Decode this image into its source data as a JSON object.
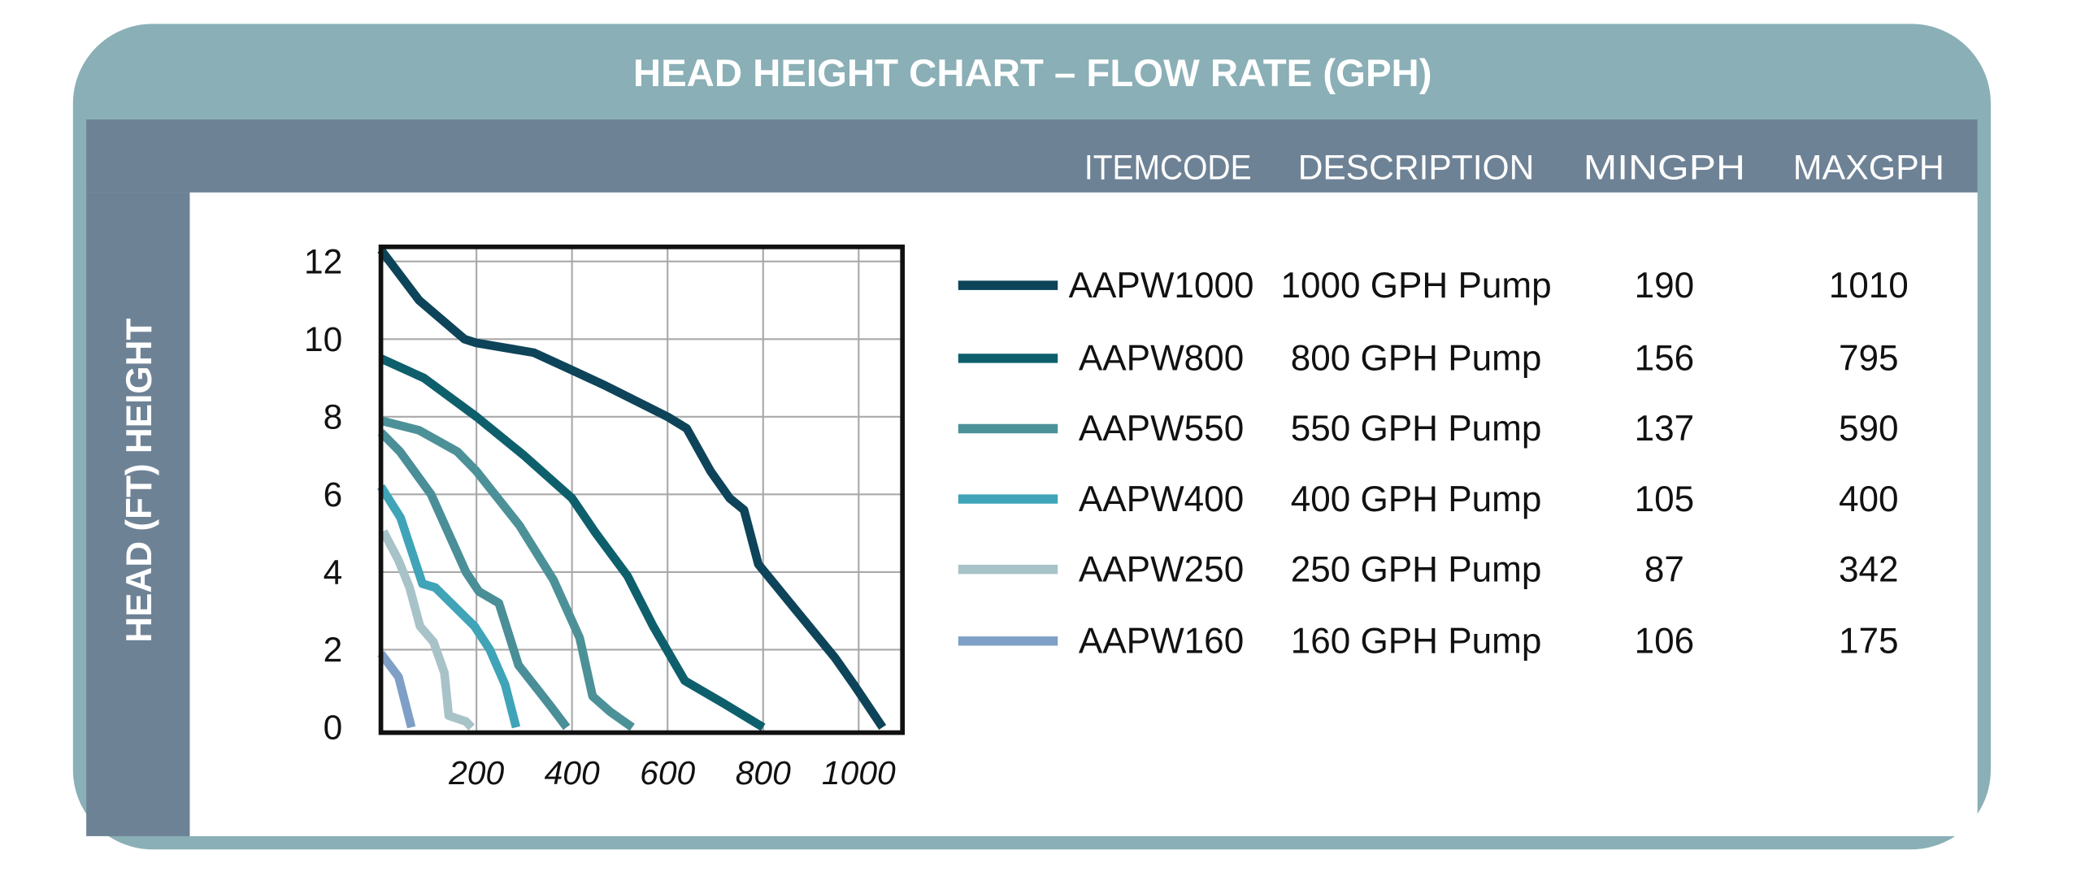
{
  "chart_data": {
    "type": "line",
    "title": "HEAD HEIGHT CHART – FLOW RATE (GPH)",
    "ylabel": "HEAD (FT) HEIGHT",
    "xlabel": "",
    "xlim": [
      0,
      1090
    ],
    "ylim": [
      0,
      12.4
    ],
    "grid": true,
    "x_ticks": [
      200,
      400,
      600,
      800,
      1000
    ],
    "y_ticks": [
      0,
      2,
      4,
      6,
      8,
      10,
      12
    ],
    "x_tick_labels": [
      "200",
      "400",
      "600",
      "800",
      "1000"
    ],
    "y_tick_labels": [
      "0",
      "2",
      "4",
      "6",
      "8",
      "10",
      "12"
    ],
    "legend_headers": {
      "itemcode": "ITEMCODE",
      "description": "DESCRIPTION",
      "min": "MINGPH",
      "max": "MAXGPH"
    },
    "legend": [
      {
        "itemcode": "AAPW1000",
        "description": "1000 GPH Pump",
        "min": "190",
        "max": "1010",
        "color": "#0d4459"
      },
      {
        "itemcode": "AAPW800",
        "description": "800 GPH Pump",
        "min": "156",
        "max": "795",
        "color": "#0e5f6c"
      },
      {
        "itemcode": "AAPW550",
        "description": "550 GPH Pump",
        "min": "137",
        "max": "590",
        "color": "#4d9198"
      },
      {
        "itemcode": "AAPW400",
        "description": "400 GPH Pump",
        "min": "105",
        "max": "400",
        "color": "#3fa4b8"
      },
      {
        "itemcode": "AAPW250",
        "description": "250 GPH Pump",
        "min": "87",
        "max": "342",
        "color": "#a8c3c8"
      },
      {
        "itemcode": "AAPW160",
        "description": "160 GPH Pump",
        "min": "106",
        "max": "175",
        "color": "#7f9fc6"
      }
    ],
    "series": [
      {
        "name": "AAPW1000",
        "color": "#0d4459",
        "points": [
          [
            0,
            12.3
          ],
          [
            80,
            11
          ],
          [
            175,
            10
          ],
          [
            200,
            9.9
          ],
          [
            320,
            9.65
          ],
          [
            400,
            9.2
          ],
          [
            470,
            8.8
          ],
          [
            600,
            8
          ],
          [
            640,
            7.7
          ],
          [
            690,
            6.6
          ],
          [
            730,
            5.9
          ],
          [
            760,
            5.6
          ],
          [
            790,
            4.2
          ],
          [
            870,
            3
          ],
          [
            950,
            1.8
          ],
          [
            990,
            1.1
          ],
          [
            1050,
            0
          ]
        ]
      },
      {
        "name": "AAPW800",
        "color": "#0e5f6c",
        "points": [
          [
            0,
            9.5
          ],
          [
            90,
            9
          ],
          [
            200,
            8
          ],
          [
            300,
            7
          ],
          [
            400,
            5.9
          ],
          [
            450,
            5
          ],
          [
            516,
            3.9
          ],
          [
            570,
            2.6
          ],
          [
            636,
            1.2
          ],
          [
            720,
            0.6
          ],
          [
            800,
            0
          ]
        ]
      },
      {
        "name": "AAPW550",
        "color": "#4d9198",
        "points": [
          [
            0,
            7.9
          ],
          [
            80,
            7.65
          ],
          [
            160,
            7.1
          ],
          [
            200,
            6.6
          ],
          [
            290,
            5.2
          ],
          [
            361,
            3.8
          ],
          [
            416,
            2.3
          ],
          [
            443,
            0.8
          ],
          [
            480,
            0.4
          ],
          [
            526,
            0
          ]
        ]
      },
      {
        "name": "",
        "color": "#4a8e98",
        "points": [
          [
            0,
            7.6
          ],
          [
            40,
            7.1
          ],
          [
            105,
            6
          ],
          [
            178,
            4
          ],
          [
            205,
            3.5
          ],
          [
            247,
            3.2
          ],
          [
            288,
            1.6
          ],
          [
            352,
            0.6
          ],
          [
            389,
            0
          ]
        ]
      },
      {
        "name": "AAPW400",
        "color": "#3fa4b8",
        "points": [
          [
            0,
            6.2
          ],
          [
            41,
            5.4
          ],
          [
            87,
            3.7
          ],
          [
            114,
            3.6
          ],
          [
            196,
            2.6
          ],
          [
            228,
            2
          ],
          [
            260,
            1.1
          ],
          [
            283,
            0
          ]
        ]
      },
      {
        "name": "AAPW250",
        "color": "#a8c3c8",
        "points": [
          [
            5,
            5.05
          ],
          [
            37,
            4.3
          ],
          [
            60,
            3.6
          ],
          [
            82,
            2.6
          ],
          [
            110,
            2.2
          ],
          [
            133,
            1.4
          ],
          [
            142,
            0.3
          ],
          [
            178,
            0.15
          ],
          [
            190,
            0
          ]
        ]
      },
      {
        "name": "AAPW160",
        "color": "#7f9fc6",
        "points": [
          [
            0,
            1.9
          ],
          [
            37,
            1.3
          ],
          [
            64,
            0
          ]
        ]
      }
    ]
  },
  "colors": {
    "frame": "#8aafb6",
    "header_band": "#6e8296",
    "panel": "#ffffff"
  }
}
